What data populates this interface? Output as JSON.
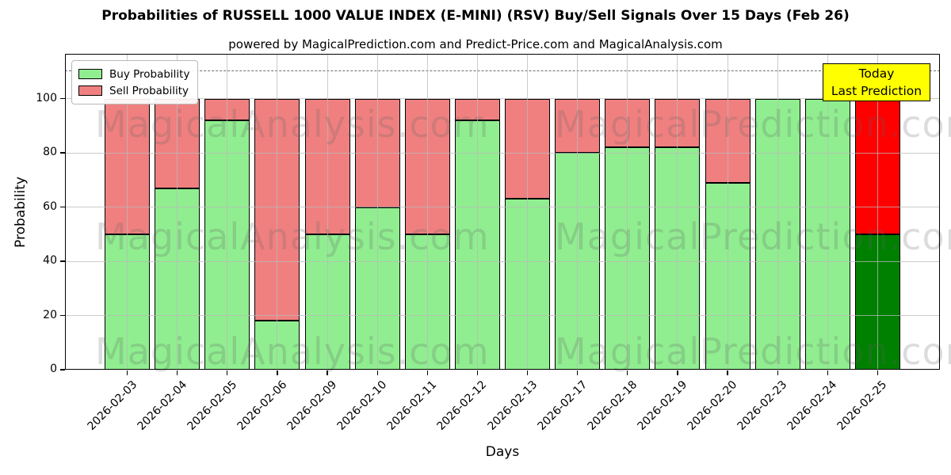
{
  "chart_data": {
    "type": "bar",
    "stacked": true,
    "title": "Probabilities of RUSSELL 1000 VALUE INDEX (E-MINI) (RSV) Buy/Sell Signals Over 15 Days (Feb 26)",
    "subtitle": "powered by MagicalPrediction.com and Predict-Price.com and MagicalAnalysis.com",
    "xlabel": "Days",
    "ylabel": "Probability",
    "categories": [
      "2026-02-03",
      "2026-02-04",
      "2026-02-05",
      "2026-02-06",
      "2026-02-09",
      "2026-02-10",
      "2026-02-11",
      "2026-02-12",
      "2026-02-13",
      "2026-02-17",
      "2026-02-18",
      "2026-02-19",
      "2026-02-20",
      "2026-02-23",
      "2026-02-24",
      "2026-02-25"
    ],
    "series": [
      {
        "name": "Buy Probability",
        "color": "#90EE90",
        "values": [
          50,
          67,
          92,
          18,
          50,
          60,
          50,
          92,
          63,
          80,
          82,
          82,
          69,
          100,
          100,
          50
        ]
      },
      {
        "name": "Sell Probability",
        "color": "#F08080",
        "values": [
          50,
          33,
          8,
          82,
          50,
          40,
          50,
          8,
          37,
          20,
          18,
          18,
          31,
          0,
          0,
          50
        ]
      }
    ],
    "today_bar": {
      "category": "2026-02-25",
      "buy": 50,
      "sell": 50,
      "buy_color": "#008000",
      "sell_color": "#FF0000"
    },
    "ylim": [
      0,
      116
    ],
    "yticks": [
      0,
      20,
      40,
      60,
      80,
      100
    ],
    "grid": true,
    "legend_position": "upper left",
    "dashed_line_y": 110,
    "annotation": {
      "line1": "Today",
      "line2": "Last Prediction",
      "bg": "#FFFF00"
    },
    "watermarks": {
      "left": "MagicalAnalysis.com",
      "right": "MagicalPrediction.com"
    }
  }
}
